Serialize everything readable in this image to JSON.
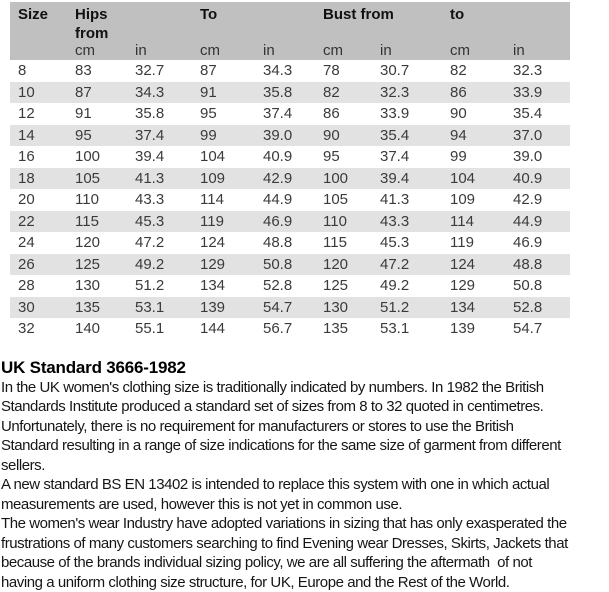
{
  "table": {
    "group_headers": {
      "size": "Size",
      "hips_from": "Hips from",
      "to_first": "To",
      "bust_from": "Bust from",
      "to_second": "to"
    },
    "unit_headers": [
      "cm",
      "in",
      "cm",
      "in",
      "cm",
      "in",
      "cm",
      "in"
    ],
    "rows": [
      [
        "8",
        "83",
        "32.7",
        "87",
        "34.3",
        "78",
        "30.7",
        "82",
        "32.3"
      ],
      [
        "10",
        "87",
        "34.3",
        "91",
        "35.8",
        "82",
        "32.3",
        "86",
        "33.9"
      ],
      [
        "12",
        "91",
        "35.8",
        "95",
        "37.4",
        "86",
        "33.9",
        "90",
        "35.4"
      ],
      [
        "14",
        "95",
        "37.4",
        "99",
        "39.0",
        "90",
        "35.4",
        "94",
        "37.0"
      ],
      [
        "16",
        "100",
        "39.4",
        "104",
        "40.9",
        "95",
        "37.4",
        "99",
        "39.0"
      ],
      [
        "18",
        "105",
        "41.3",
        "109",
        "42.9",
        "100",
        "39.4",
        "104",
        "40.9"
      ],
      [
        "20",
        "110",
        "43.3",
        "114",
        "44.9",
        "105",
        "41.3",
        "109",
        "42.9"
      ],
      [
        "22",
        "115",
        "45.3",
        "119",
        "46.9",
        "110",
        "43.3",
        "114",
        "44.9"
      ],
      [
        "24",
        "120",
        "47.2",
        "124",
        "48.8",
        "115",
        "45.3",
        "119",
        "46.9"
      ],
      [
        "26",
        "125",
        "49.2",
        "129",
        "50.8",
        "120",
        "47.2",
        "124",
        "48.8"
      ],
      [
        "28",
        "130",
        "51.2",
        "134",
        "52.8",
        "125",
        "49.2",
        "129",
        "50.8"
      ],
      [
        "30",
        "135",
        "53.1",
        "139",
        "54.7",
        "130",
        "51.2",
        "134",
        "52.8"
      ],
      [
        "32",
        "140",
        "55.1",
        "144",
        "56.7",
        "135",
        "53.1",
        "139",
        "54.7"
      ]
    ]
  },
  "article": {
    "heading": "UK Standard 3666-1982",
    "paragraphs": [
      {
        "lines": [
          "In the UK women's clothing size is traditionally indicated by numbers. In 1982 the British",
          "Standards Institute produced a standard set of sizes from 8 to 32 quoted in centimetres.",
          "Unfortunately, there is no requirement for manufacturers or stores to use the British",
          "Standard resulting in a range of size indications for the same size of garment from different",
          "sellers."
        ]
      },
      {
        "lines": [
          "A new standard BS EN 13402 is intended to replace this system with one in which actual",
          "measurements are used, however this is not yet in common use."
        ]
      },
      {
        "lines": [
          "The women's wear Industry have adopted variations in sizing that has only exasperated the",
          "frustrations of many customers searching to find Evening wear Dresses, Skirts, Jackets that",
          "because of the brands individual sizing policy, we are all suffering the aftermath  of not",
          "having a uniform clothing size structure, for UK, Europe and the Rest of the World."
        ]
      }
    ]
  },
  "colors": {
    "header_bg": "#c0c0c0",
    "row_alt_bg": "#e2e2e2",
    "table_text": "#3b3b3b",
    "body_text": "#161616"
  }
}
